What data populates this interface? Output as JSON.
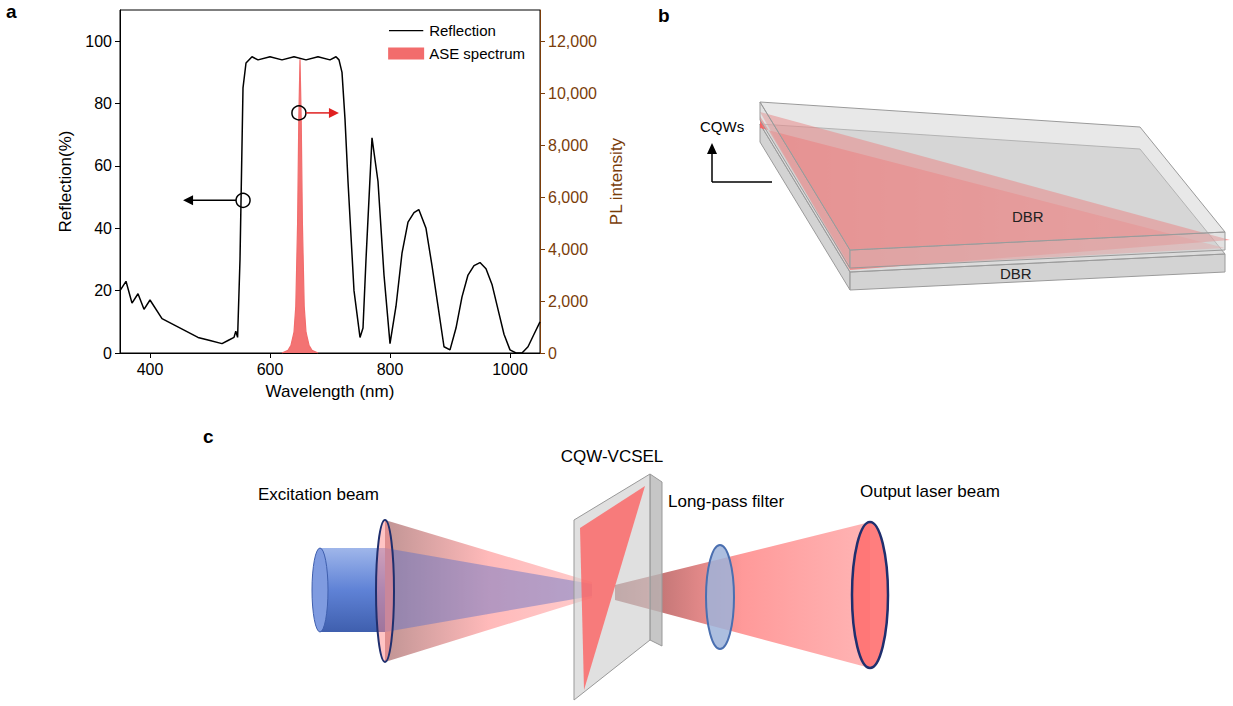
{
  "chart_data": {
    "type": "line",
    "xlabel": "Wavelength (nm)",
    "ylabel": "Reflection(%)",
    "y2label": "PL intensity",
    "xlim": [
      350,
      1050
    ],
    "xticks": [
      400,
      600,
      800,
      1000
    ],
    "ylim": [
      0,
      110
    ],
    "yticks": [
      0,
      20,
      40,
      60,
      80,
      100
    ],
    "y2lim": [
      0,
      13200
    ],
    "y2ticks": [
      0,
      {
        "value": 2000,
        "label": "2,000"
      },
      {
        "value": 4000,
        "label": "4,000"
      },
      {
        "value": 6000,
        "label": "6,000"
      },
      {
        "value": 8000,
        "label": "8,000"
      },
      {
        "value": 10000,
        "label": "10,000"
      },
      {
        "value": 12000,
        "label": "12,000"
      }
    ],
    "grid": false,
    "legend": "upper right",
    "series": [
      {
        "name": "Reflection",
        "type": "line",
        "color": "#000000",
        "axis": "y",
        "x": [
          350,
          360,
          370,
          380,
          390,
          400,
          420,
          440,
          460,
          480,
          500,
          520,
          530,
          540,
          543,
          546,
          550,
          555,
          560,
          570,
          580,
          600,
          620,
          640,
          660,
          680,
          700,
          710,
          715,
          720,
          725,
          730,
          740,
          750,
          755,
          760,
          770,
          780,
          790,
          800,
          810,
          820,
          830,
          840,
          848,
          860,
          870,
          880,
          890,
          900,
          910,
          920,
          930,
          940,
          950,
          960,
          970,
          980,
          990,
          1000,
          1010,
          1020,
          1030,
          1040,
          1050
        ],
        "values": [
          20,
          23,
          16,
          19,
          14,
          17,
          11,
          9,
          7,
          5,
          4,
          3,
          4,
          5,
          7,
          5,
          30,
          85,
          93,
          95,
          94,
          95,
          94,
          95,
          94,
          95,
          94,
          95,
          94,
          90,
          75,
          55,
          20,
          5,
          8,
          30,
          69,
          55,
          25,
          3,
          15,
          32,
          42,
          45,
          46,
          40,
          28,
          15,
          2,
          1,
          8,
          18,
          25,
          28,
          29,
          27,
          22,
          14,
          6,
          1,
          0,
          0,
          2,
          6,
          10
        ]
      },
      {
        "name": "ASE spectrum",
        "type": "area",
        "color": "#f26c6c",
        "axis": "y2",
        "x": [
          620,
          630,
          635,
          640,
          643,
          646,
          648,
          650,
          652,
          654,
          657,
          660,
          665,
          670,
          680
        ],
        "values": [
          0,
          100,
          300,
          800,
          1800,
          5000,
          9000,
          11300,
          9000,
          5000,
          1800,
          800,
          300,
          100,
          0
        ]
      }
    ]
  },
  "panel_labels": [
    "a",
    "b",
    "c"
  ],
  "diagram_b": {
    "layer_label": "CQWs",
    "top_mirror": "DBR",
    "bottom_mirror": "DBR"
  },
  "diagram_c": {
    "device": "CQW-VCSEL",
    "filter": "Long-pass filter",
    "input": "Excitation beam",
    "output": "Output laser beam"
  }
}
